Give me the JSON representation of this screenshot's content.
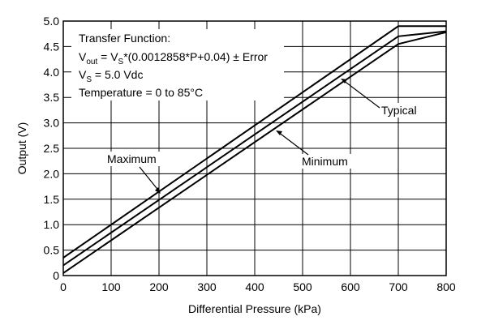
{
  "chart_data": {
    "type": "line",
    "xlabel": "Differential Pressure (kPa)",
    "ylabel": "Output (V)",
    "xlim": [
      0,
      800
    ],
    "ylim": [
      0,
      5.0
    ],
    "x_ticks": [
      0,
      100,
      200,
      300,
      400,
      500,
      600,
      700,
      800
    ],
    "y_ticks": [
      0,
      0.5,
      1.0,
      1.5,
      2.0,
      2.5,
      3.0,
      3.5,
      4.0,
      4.5,
      5.0
    ],
    "y_tick_labels": [
      "0",
      "0.5",
      "1.0",
      "1.5",
      "2.0",
      "2.5",
      "3.0",
      "3.5",
      "4.0",
      "4.5",
      "5.0"
    ],
    "x_tick_labels": [
      "0",
      "100",
      "200",
      "300",
      "400",
      "500",
      "600",
      "700",
      "800"
    ],
    "grid": true,
    "series": [
      {
        "name": "Maximum",
        "x": [
          0,
          700,
          800
        ],
        "y": [
          0.35,
          4.9,
          4.9
        ]
      },
      {
        "name": "Typical",
        "x": [
          0,
          700,
          800
        ],
        "y": [
          0.2,
          4.7,
          4.8
        ]
      },
      {
        "name": "Minimum",
        "x": [
          0,
          700,
          800
        ],
        "y": [
          0.05,
          4.55,
          4.78
        ]
      }
    ],
    "annotation_lines": [
      "Transfer Function:",
      "Vout = VS*(0.0012858*P+0.04) ± Error",
      "VS = 5.0 Vdc",
      "Temperature = 0 to 85°C"
    ]
  },
  "annotation": {
    "line1": "Transfer Function:",
    "line2_v": "V",
    "line2_sub": "out",
    "line2_eq": " = V",
    "line2_sub2": "S",
    "line2_rest": "*(0.0012858*P+0.04) ± Error",
    "line3_v": "V",
    "line3_sub": "S",
    "line3_rest": " = 5.0 Vdc",
    "line4": "Temperature = 0 to 85°C"
  },
  "labels": {
    "maximum": "Maximum",
    "typical": "Typical",
    "minimum": "Minimum"
  }
}
